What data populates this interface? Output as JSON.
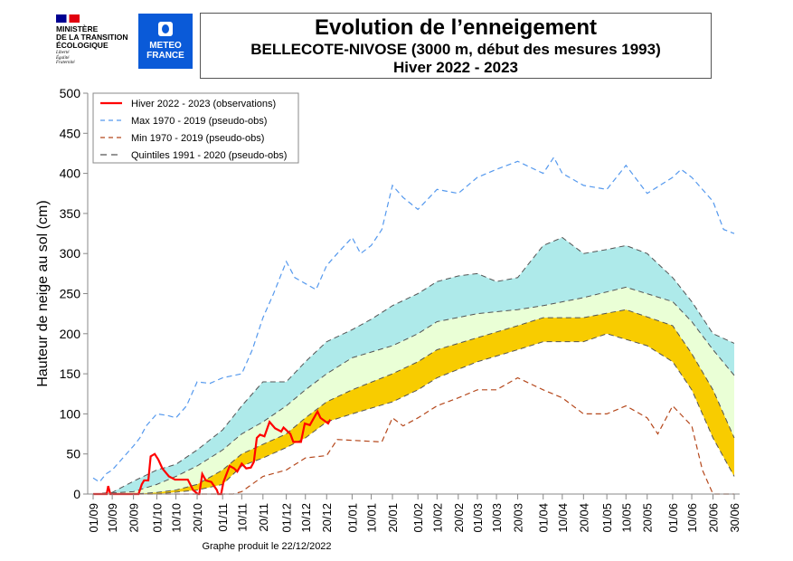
{
  "header": {
    "ministry": "MINISTÈRE\nDE LA TRANSITION\nÉCOLOGIQUE",
    "devise": "Liberté\nÉgalité\nFraternité",
    "meteo_logo": "METEO\nFRANCE"
  },
  "chart_data": {
    "type": "line",
    "title": "Evolution de l’enneigement",
    "subtitle": "BELLECOTE-NIVOSE (3000 m, début des mesures 1993)",
    "subtitle2": "Hiver 2022 - 2023",
    "ylabel": "Hauteur de neige au sol (cm)",
    "xlabel": "",
    "footer": "Graphe produit le 22/12/2022",
    "ylim": [
      0,
      500
    ],
    "yticks": [
      0,
      50,
      100,
      150,
      200,
      250,
      300,
      350,
      400,
      450,
      500
    ],
    "xlim": [
      0,
      302
    ],
    "x_unit": "days since 01/09",
    "xticks": [
      {
        "d": 0,
        "l": "01/09"
      },
      {
        "d": 9,
        "l": "10/09"
      },
      {
        "d": 19,
        "l": "20/09"
      },
      {
        "d": 30,
        "l": "01/10"
      },
      {
        "d": 39,
        "l": "10/10"
      },
      {
        "d": 49,
        "l": "20/10"
      },
      {
        "d": 61,
        "l": "01/11"
      },
      {
        "d": 70,
        "l": "10/11"
      },
      {
        "d": 80,
        "l": "20/11"
      },
      {
        "d": 91,
        "l": "01/12"
      },
      {
        "d": 100,
        "l": "10/12"
      },
      {
        "d": 110,
        "l": "20/12"
      },
      {
        "d": 122,
        "l": "01/01"
      },
      {
        "d": 131,
        "l": "10/01"
      },
      {
        "d": 141,
        "l": "20/01"
      },
      {
        "d": 153,
        "l": "01/02"
      },
      {
        "d": 162,
        "l": "10/02"
      },
      {
        "d": 172,
        "l": "20/02"
      },
      {
        "d": 181,
        "l": "01/03"
      },
      {
        "d": 190,
        "l": "10/03"
      },
      {
        "d": 200,
        "l": "20/03"
      },
      {
        "d": 212,
        "l": "01/04"
      },
      {
        "d": 221,
        "l": "10/04"
      },
      {
        "d": 231,
        "l": "20/04"
      },
      {
        "d": 242,
        "l": "01/05"
      },
      {
        "d": 251,
        "l": "10/05"
      },
      {
        "d": 261,
        "l": "20/05"
      },
      {
        "d": 273,
        "l": "01/06"
      },
      {
        "d": 282,
        "l": "10/06"
      },
      {
        "d": 292,
        "l": "20/06"
      },
      {
        "d": 302,
        "l": "30/06"
      }
    ],
    "legend": [
      "Hiver 2022 - 2023 (observations)",
      "Max 1970 - 2019 (pseudo-obs)",
      "Min 1970 - 2019 (pseudo-obs)",
      "Quintiles 1991 - 2020 (pseudo-obs)"
    ],
    "legend_position": "top-left",
    "colors": {
      "obs": "#ff0000",
      "max": "#5599ee",
      "min": "#b5481c",
      "quintile": "#555555",
      "band_high": "#aeeaea",
      "band_mid": "#eaffd6",
      "band_low": "#f8cc00"
    },
    "series": {
      "q80": [
        [
          0,
          0
        ],
        [
          9,
          2
        ],
        [
          19,
          16
        ],
        [
          30,
          30
        ],
        [
          39,
          37
        ],
        [
          49,
          55
        ],
        [
          61,
          80
        ],
        [
          70,
          110
        ],
        [
          80,
          140
        ],
        [
          91,
          140
        ],
        [
          100,
          165
        ],
        [
          110,
          190
        ],
        [
          122,
          205
        ],
        [
          131,
          218
        ],
        [
          141,
          235
        ],
        [
          153,
          250
        ],
        [
          162,
          265
        ],
        [
          172,
          272
        ],
        [
          181,
          275
        ],
        [
          190,
          265
        ],
        [
          200,
          270
        ],
        [
          212,
          310
        ],
        [
          221,
          320
        ],
        [
          231,
          300
        ],
        [
          242,
          305
        ],
        [
          251,
          310
        ],
        [
          261,
          300
        ],
        [
          273,
          270
        ],
        [
          282,
          240
        ],
        [
          292,
          200
        ],
        [
          302,
          188
        ]
      ],
      "q60": [
        [
          0,
          0
        ],
        [
          19,
          3
        ],
        [
          30,
          12
        ],
        [
          39,
          22
        ],
        [
          49,
          35
        ],
        [
          61,
          55
        ],
        [
          70,
          75
        ],
        [
          80,
          90
        ],
        [
          91,
          110
        ],
        [
          100,
          130
        ],
        [
          110,
          150
        ],
        [
          122,
          170
        ],
        [
          141,
          185
        ],
        [
          153,
          200
        ],
        [
          162,
          215
        ],
        [
          181,
          225
        ],
        [
          200,
          230
        ],
        [
          212,
          235
        ],
        [
          231,
          245
        ],
        [
          251,
          258
        ],
        [
          273,
          240
        ],
        [
          282,
          215
        ],
        [
          292,
          180
        ],
        [
          302,
          148
        ]
      ],
      "q40": [
        [
          0,
          0
        ],
        [
          19,
          0
        ],
        [
          30,
          2
        ],
        [
          39,
          5
        ],
        [
          49,
          12
        ],
        [
          61,
          30
        ],
        [
          70,
          50
        ],
        [
          80,
          62
        ],
        [
          91,
          75
        ],
        [
          100,
          95
        ],
        [
          110,
          115
        ],
        [
          122,
          130
        ],
        [
          141,
          150
        ],
        [
          153,
          165
        ],
        [
          162,
          180
        ],
        [
          181,
          195
        ],
        [
          200,
          210
        ],
        [
          212,
          220
        ],
        [
          231,
          220
        ],
        [
          251,
          230
        ],
        [
          273,
          210
        ],
        [
          282,
          175
        ],
        [
          292,
          130
        ],
        [
          302,
          70
        ]
      ],
      "q20": [
        [
          0,
          0
        ],
        [
          30,
          0
        ],
        [
          49,
          5
        ],
        [
          61,
          12
        ],
        [
          70,
          35
        ],
        [
          80,
          45
        ],
        [
          91,
          58
        ],
        [
          100,
          70
        ],
        [
          110,
          90
        ],
        [
          122,
          100
        ],
        [
          141,
          115
        ],
        [
          153,
          130
        ],
        [
          162,
          145
        ],
        [
          181,
          165
        ],
        [
          200,
          180
        ],
        [
          212,
          190
        ],
        [
          231,
          190
        ],
        [
          242,
          200
        ],
        [
          261,
          185
        ],
        [
          273,
          165
        ],
        [
          282,
          130
        ],
        [
          292,
          70
        ],
        [
          302,
          22
        ]
      ],
      "max": [
        [
          0,
          20
        ],
        [
          3,
          15
        ],
        [
          6,
          25
        ],
        [
          9,
          30
        ],
        [
          14,
          45
        ],
        [
          19,
          60
        ],
        [
          22,
          70
        ],
        [
          25,
          85
        ],
        [
          30,
          100
        ],
        [
          35,
          98
        ],
        [
          39,
          95
        ],
        [
          44,
          110
        ],
        [
          49,
          140
        ],
        [
          55,
          138
        ],
        [
          61,
          145
        ],
        [
          70,
          150
        ],
        [
          75,
          180
        ],
        [
          80,
          220
        ],
        [
          85,
          250
        ],
        [
          91,
          290
        ],
        [
          95,
          270
        ],
        [
          105,
          255
        ],
        [
          110,
          285
        ],
        [
          115,
          300
        ],
        [
          122,
          320
        ],
        [
          126,
          300
        ],
        [
          131,
          310
        ],
        [
          136,
          330
        ],
        [
          141,
          385
        ],
        [
          146,
          370
        ],
        [
          153,
          355
        ],
        [
          162,
          380
        ],
        [
          172,
          375
        ],
        [
          181,
          395
        ],
        [
          190,
          405
        ],
        [
          200,
          415
        ],
        [
          212,
          400
        ],
        [
          217,
          420
        ],
        [
          221,
          400
        ],
        [
          231,
          385
        ],
        [
          242,
          380
        ],
        [
          251,
          410
        ],
        [
          261,
          375
        ],
        [
          273,
          395
        ],
        [
          277,
          405
        ],
        [
          282,
          395
        ],
        [
          292,
          365
        ],
        [
          297,
          330
        ],
        [
          302,
          325
        ]
      ],
      "min": [
        [
          0,
          0
        ],
        [
          61,
          0
        ],
        [
          66,
          0
        ],
        [
          70,
          3
        ],
        [
          80,
          22
        ],
        [
          91,
          30
        ],
        [
          100,
          45
        ],
        [
          110,
          48
        ],
        [
          115,
          68
        ],
        [
          136,
          65
        ],
        [
          141,
          95
        ],
        [
          146,
          85
        ],
        [
          153,
          95
        ],
        [
          162,
          110
        ],
        [
          172,
          120
        ],
        [
          181,
          130
        ],
        [
          190,
          130
        ],
        [
          200,
          145
        ],
        [
          212,
          130
        ],
        [
          221,
          120
        ],
        [
          231,
          100
        ],
        [
          242,
          100
        ],
        [
          251,
          110
        ],
        [
          261,
          95
        ],
        [
          266,
          75
        ],
        [
          273,
          110
        ],
        [
          282,
          85
        ],
        [
          287,
          30
        ],
        [
          292,
          0
        ],
        [
          302,
          0
        ]
      ],
      "obs": [
        [
          0,
          0
        ],
        [
          6.4,
          0
        ],
        [
          7.1,
          10
        ],
        [
          8.1,
          0
        ],
        [
          21.4,
          0
        ],
        [
          22.9,
          12
        ],
        [
          24,
          17
        ],
        [
          26,
          17
        ],
        [
          27.1,
          47
        ],
        [
          29,
          50
        ],
        [
          30.7,
          43
        ],
        [
          32.6,
          32
        ],
        [
          35.7,
          22
        ],
        [
          38.6,
          18
        ],
        [
          41.4,
          18
        ],
        [
          44.6,
          18
        ],
        [
          47.1,
          5
        ],
        [
          49.3,
          0
        ],
        [
          50,
          0
        ],
        [
          51.4,
          25
        ],
        [
          53.1,
          17
        ],
        [
          55.7,
          15
        ],
        [
          58.3,
          5
        ],
        [
          58.9,
          0
        ],
        [
          60.3,
          0
        ],
        [
          61.4,
          15
        ],
        [
          64.3,
          35
        ],
        [
          66.4,
          32
        ],
        [
          67.9,
          28
        ],
        [
          70,
          38
        ],
        [
          72.1,
          32
        ],
        [
          74.3,
          33
        ],
        [
          75.7,
          40
        ],
        [
          77.1,
          70
        ],
        [
          78.6,
          74
        ],
        [
          80.7,
          72
        ],
        [
          83.1,
          90
        ],
        [
          85.7,
          82
        ],
        [
          88.6,
          78
        ],
        [
          89.7,
          83
        ],
        [
          92.9,
          75
        ],
        [
          94.3,
          65
        ],
        [
          97.9,
          65
        ],
        [
          99.7,
          88
        ],
        [
          102.1,
          86
        ],
        [
          105.7,
          103
        ],
        [
          107.1,
          95
        ],
        [
          110.7,
          88
        ],
        [
          111.7,
          93
        ]
      ]
    }
  }
}
